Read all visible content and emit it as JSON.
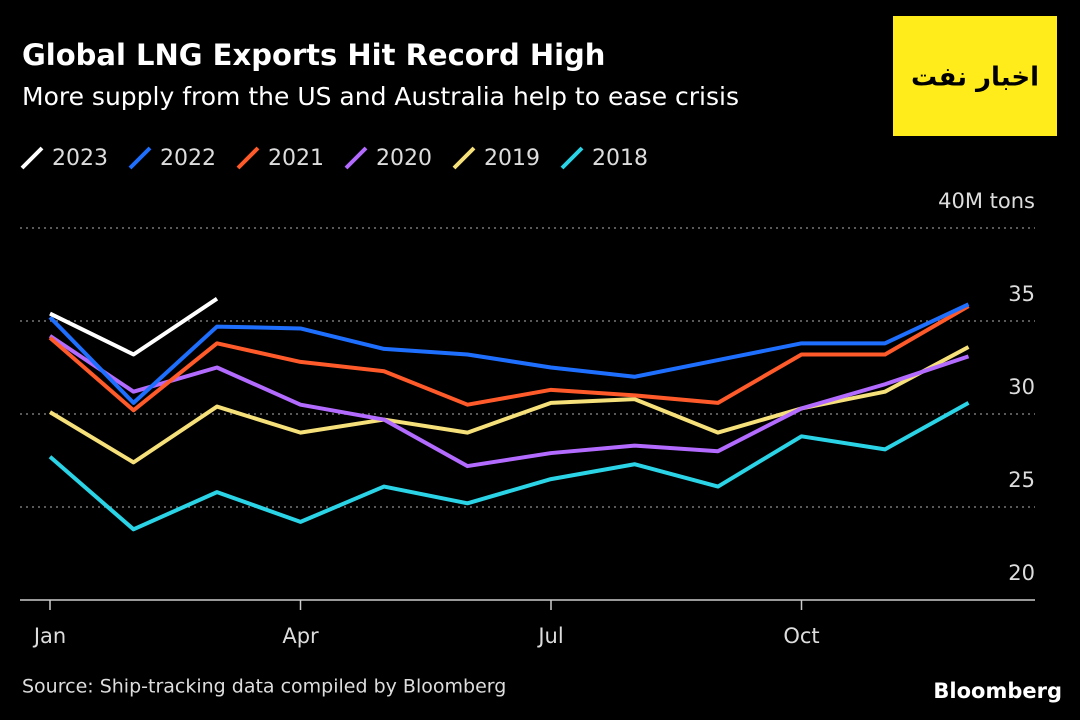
{
  "chart_data": {
    "type": "line",
    "title": "Global LNG Exports Hit Record High",
    "subtitle": "More supply from the US and Australia help to ease crisis",
    "categories": [
      "Jan",
      null,
      null,
      "Apr",
      null,
      null,
      "Jul",
      null,
      null,
      "Oct",
      null,
      null
    ],
    "ylim": [
      20,
      40
    ],
    "yticks": [
      20,
      25,
      30,
      35,
      {
        "value": 40,
        "label": "40M tons"
      }
    ],
    "grid": true,
    "series": [
      {
        "name": "2023",
        "color": "#ffffff",
        "values": [
          35.4,
          33.2,
          36.2,
          null,
          null,
          null,
          null,
          null,
          null,
          null,
          null,
          null
        ]
      },
      {
        "name": "2022",
        "color": "#1f6fff",
        "values": [
          35.2,
          30.6,
          34.7,
          34.6,
          33.5,
          33.2,
          32.5,
          32.0,
          32.9,
          33.8,
          33.8,
          35.9
        ]
      },
      {
        "name": "2021",
        "color": "#ff5a2a",
        "values": [
          34.1,
          30.2,
          33.8,
          32.8,
          32.3,
          30.5,
          31.3,
          31.0,
          30.6,
          33.2,
          33.2,
          35.8
        ]
      },
      {
        "name": "2020",
        "color": "#b36bff",
        "values": [
          34.2,
          31.2,
          32.5,
          30.5,
          29.7,
          27.2,
          27.9,
          28.3,
          28.0,
          30.3,
          31.6,
          33.1
        ]
      },
      {
        "name": "2019",
        "color": "#f5e07a",
        "values": [
          30.1,
          27.4,
          30.4,
          29.0,
          29.7,
          29.0,
          30.6,
          30.8,
          29.0,
          30.3,
          31.2,
          33.6
        ]
      },
      {
        "name": "2018",
        "color": "#2ad4e6",
        "values": [
          27.7,
          23.8,
          25.8,
          24.2,
          26.1,
          25.2,
          26.5,
          27.3,
          26.1,
          28.8,
          28.1,
          30.6
        ]
      }
    ],
    "source": "Source: Ship-tracking data compiled by Bloomberg",
    "brand": "Bloomberg"
  },
  "logo": {
    "text": "اخبار نفت"
  }
}
